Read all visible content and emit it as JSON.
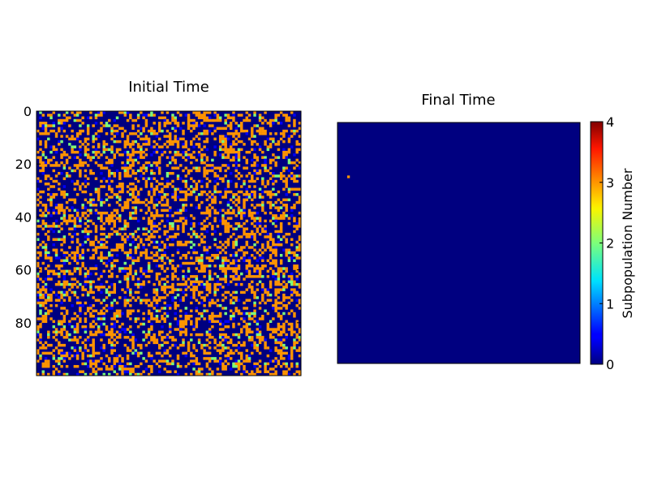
{
  "chart_data": [
    {
      "type": "heatmap",
      "title": "Initial Time",
      "grid_size": 100,
      "x_tick_labels": [],
      "y_ticks": [
        0,
        20,
        40,
        60,
        80
      ],
      "ylim": [
        99,
        0
      ],
      "value_range": [
        0,
        4
      ],
      "value_distribution": {
        "0": 0.62,
        "1": 0.04,
        "2": 0.04,
        "3": 0.3
      },
      "colormap": "jet",
      "grid": false
    },
    {
      "type": "heatmap",
      "title": "Final Time",
      "grid_size": 100,
      "x_tick_labels": [],
      "y_tick_labels": [],
      "value_range": [
        0,
        4
      ],
      "background_value": 0,
      "nonzero_cells": [
        {
          "row": 22,
          "col": 4,
          "value": 3
        }
      ],
      "colormap": "jet",
      "grid": false
    }
  ],
  "colorbar": {
    "label": "Subpopulation Number",
    "ticks": [
      0,
      1,
      2,
      3,
      4
    ],
    "range": [
      0,
      4
    ],
    "colormap": "jet"
  },
  "colors": {
    "jet_0": "#000080",
    "jet_1": "#0000ff",
    "jet_2": "#7dff7a",
    "jet_3": "#ff9400",
    "jet_4": "#800000"
  }
}
